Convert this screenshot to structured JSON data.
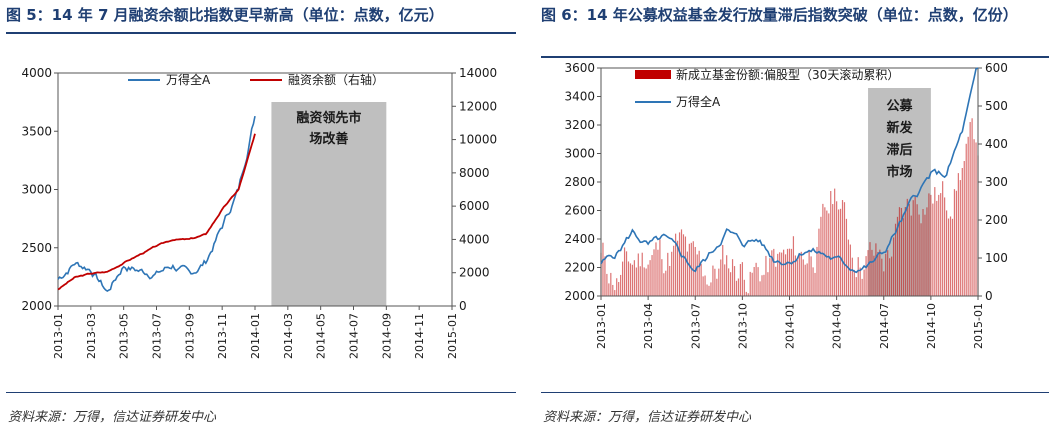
{
  "left_panel": {
    "title": "图 5：14 年 7 月融资余额比指数更早新高（单位：点数，亿元）",
    "source": "资料来源：万得，信达证券研发中心"
  },
  "right_panel": {
    "title": "图 6：14 年公募权益基金发行放量滞后指数突破（单位：点数，亿份）",
    "source": "资料来源：万得，信达证券研发中心"
  },
  "colors": {
    "index_line": "#2e75b6",
    "margin_line": "#c00000",
    "fund_bars": "#c00000",
    "shade": "#bfbfbf",
    "title": "#1f3f73"
  },
  "chart_data": [
    {
      "type": "line",
      "x": [
        "2013-01",
        "2013-03",
        "2013-05",
        "2013-07",
        "2013-09",
        "2013-11",
        "2014-01",
        "2014-03",
        "2014-05",
        "2014-07",
        "2014-09",
        "2014-11",
        "2015-01"
      ],
      "series": [
        {
          "name": "万得全A",
          "axis": "left",
          "values": [
            2230,
            2370,
            2320,
            2120,
            2350,
            2300,
            2280,
            2350,
            2260,
            2380,
            2680,
            3000,
            3640
          ]
        },
        {
          "name": "融资余额（右轴）",
          "axis": "right",
          "values": [
            1000,
            1700,
            1950,
            2050,
            2600,
            3100,
            3600,
            4000,
            4000,
            4300,
            5800,
            7000,
            10300
          ]
        }
      ],
      "annotation": {
        "text_line1": "融资领先市",
        "text_line2": "场改善",
        "x_start": "2014-02",
        "x_end": "2014-09"
      },
      "ylim_left": [
        2000,
        4000
      ],
      "ylim_right": [
        0,
        14000
      ],
      "yticks_left": [
        "2000",
        "2500",
        "3000",
        "3500",
        "4000"
      ],
      "yticks_right": [
        "0",
        "2000",
        "4000",
        "6000",
        "8000",
        "10000",
        "12000",
        "14000"
      ],
      "xticks": [
        "2013-01",
        "2013-03",
        "2013-05",
        "2013-07",
        "2013-09",
        "2013-11",
        "2014-01",
        "2014-03",
        "2014-05",
        "2014-07",
        "2014-09",
        "2014-11",
        "2015-01"
      ],
      "legend": "top"
    },
    {
      "type": "bar",
      "x": [
        "2013-01",
        "2013-02",
        "2013-03",
        "2013-04",
        "2013-05",
        "2013-06",
        "2013-07",
        "2013-08",
        "2013-09",
        "2013-10",
        "2013-11",
        "2013-12",
        "2014-01",
        "2014-02",
        "2014-03",
        "2014-04",
        "2014-05",
        "2014-06",
        "2014-07",
        "2014-08",
        "2014-09",
        "2014-10",
        "2014-11",
        "2014-12",
        "2015-01"
      ],
      "series": [
        {
          "name": "新成立基金份额:偏股型（30天滚动累积）",
          "kind": "bar",
          "axis": "right",
          "values": [
            100,
            50,
            80,
            120,
            110,
            130,
            60,
            60,
            90,
            80,
            60,
            80,
            90,
            110,
            160,
            280,
            130,
            110,
            90,
            170,
            260,
            280,
            250,
            360,
            410
          ]
        },
        {
          "name": "万得全A",
          "kind": "line",
          "axis": "left",
          "values": [
            2230,
            2300,
            2450,
            2350,
            2400,
            2300,
            2180,
            2300,
            2460,
            2370,
            2400,
            2260,
            2250,
            2330,
            2300,
            2250,
            2200,
            2210,
            2300,
            2500,
            2700,
            2850,
            2850,
            3150,
            3600
          ]
        }
      ],
      "annotation": {
        "lines": [
          "公募",
          "新发",
          "滞后",
          "市场"
        ],
        "x_start": "2014-06",
        "x_end": "2014-10"
      },
      "ylim_left": [
        2000,
        3600
      ],
      "ylim_right": [
        0,
        600
      ],
      "yticks_left": [
        "2000",
        "2200",
        "2400",
        "2600",
        "2800",
        "3000",
        "3200",
        "3400",
        "3600"
      ],
      "yticks_right": [
        "0",
        "100",
        "200",
        "300",
        "400",
        "500",
        "600"
      ],
      "xticks": [
        "2013-01",
        "2013-04",
        "2013-07",
        "2013-10",
        "2014-01",
        "2014-04",
        "2014-07",
        "2014-10",
        "2015-01"
      ],
      "legend": "top-left"
    }
  ]
}
